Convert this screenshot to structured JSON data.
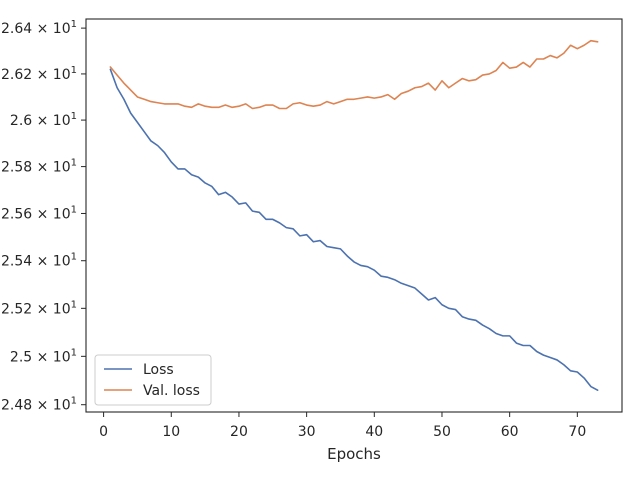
{
  "chart_data": {
    "type": "line",
    "title": "",
    "xlabel": "Epochs",
    "ylabel": "",
    "xlim": [
      -2.6,
      76.6
    ],
    "ylim": [
      24.77,
      26.44
    ],
    "y_scale": "log",
    "grid": false,
    "legend_position": "lower-left",
    "x_ticks": [
      {
        "value": 0,
        "label": "0"
      },
      {
        "value": 10,
        "label": "10"
      },
      {
        "value": 20,
        "label": "20"
      },
      {
        "value": 30,
        "label": "30"
      },
      {
        "value": 40,
        "label": "40"
      },
      {
        "value": 50,
        "label": "50"
      },
      {
        "value": 60,
        "label": "60"
      },
      {
        "value": 70,
        "label": "70"
      }
    ],
    "y_ticks": [
      {
        "value": 24.8,
        "mant": "2.48",
        "exp": "1"
      },
      {
        "value": 25.0,
        "mant": "2.5",
        "exp": "1"
      },
      {
        "value": 25.2,
        "mant": "2.52",
        "exp": "1"
      },
      {
        "value": 25.4,
        "mant": "2.54",
        "exp": "1"
      },
      {
        "value": 25.6,
        "mant": "2.56",
        "exp": "1"
      },
      {
        "value": 25.8,
        "mant": "2.58",
        "exp": "1"
      },
      {
        "value": 26.0,
        "mant": "2.6",
        "exp": "1"
      },
      {
        "value": 26.2,
        "mant": "2.62",
        "exp": "1"
      },
      {
        "value": 26.4,
        "mant": "2.64",
        "exp": "1"
      }
    ],
    "x": [
      1,
      2,
      3,
      4,
      5,
      6,
      7,
      8,
      9,
      10,
      11,
      12,
      13,
      14,
      15,
      16,
      17,
      18,
      19,
      20,
      21,
      22,
      23,
      24,
      25,
      26,
      27,
      28,
      29,
      30,
      31,
      32,
      33,
      34,
      35,
      36,
      37,
      38,
      39,
      40,
      41,
      42,
      43,
      44,
      45,
      46,
      47,
      48,
      49,
      50,
      51,
      52,
      53,
      54,
      55,
      56,
      57,
      58,
      59,
      60,
      61,
      62,
      63,
      64,
      65,
      66,
      67,
      68,
      69,
      70,
      71,
      72,
      73
    ],
    "series": [
      {
        "name": "Loss",
        "color": "#4c72b0",
        "values": [
          26.22,
          26.14,
          26.09,
          26.03,
          25.99,
          25.95,
          25.91,
          25.89,
          25.86,
          25.82,
          25.79,
          25.79,
          25.765,
          25.755,
          25.73,
          25.715,
          25.68,
          25.69,
          25.67,
          25.64,
          25.645,
          25.61,
          25.605,
          25.575,
          25.575,
          25.56,
          25.54,
          25.535,
          25.505,
          25.51,
          25.48,
          25.485,
          25.46,
          25.455,
          25.45,
          25.42,
          25.395,
          25.38,
          25.375,
          25.36,
          25.335,
          25.33,
          25.32,
          25.305,
          25.295,
          25.285,
          25.26,
          25.235,
          25.245,
          25.215,
          25.2,
          25.195,
          25.165,
          25.155,
          25.15,
          25.13,
          25.115,
          25.095,
          25.085,
          25.085,
          25.055,
          25.045,
          25.045,
          25.02,
          25.005,
          24.995,
          24.985,
          24.965,
          24.94,
          24.935,
          24.91,
          24.875,
          24.86
        ]
      },
      {
        "name": "Val. loss",
        "color": "#dd8452",
        "values": [
          26.23,
          26.195,
          26.16,
          26.13,
          26.1,
          26.09,
          26.08,
          26.075,
          26.07,
          26.07,
          26.07,
          26.06,
          26.055,
          26.07,
          26.06,
          26.055,
          26.055,
          26.065,
          26.055,
          26.06,
          26.07,
          26.05,
          26.055,
          26.065,
          26.065,
          26.05,
          26.05,
          26.07,
          26.075,
          26.065,
          26.06,
          26.065,
          26.08,
          26.07,
          26.08,
          26.09,
          26.09,
          26.095,
          26.1,
          26.095,
          26.1,
          26.11,
          26.09,
          26.115,
          26.125,
          26.14,
          26.145,
          26.16,
          26.13,
          26.17,
          26.14,
          26.16,
          26.18,
          26.17,
          26.175,
          26.195,
          26.2,
          26.215,
          26.25,
          26.225,
          26.23,
          26.25,
          26.23,
          26.265,
          26.265,
          26.28,
          26.27,
          26.29,
          26.325,
          26.31,
          26.325,
          26.345,
          26.34
        ]
      }
    ]
  }
}
